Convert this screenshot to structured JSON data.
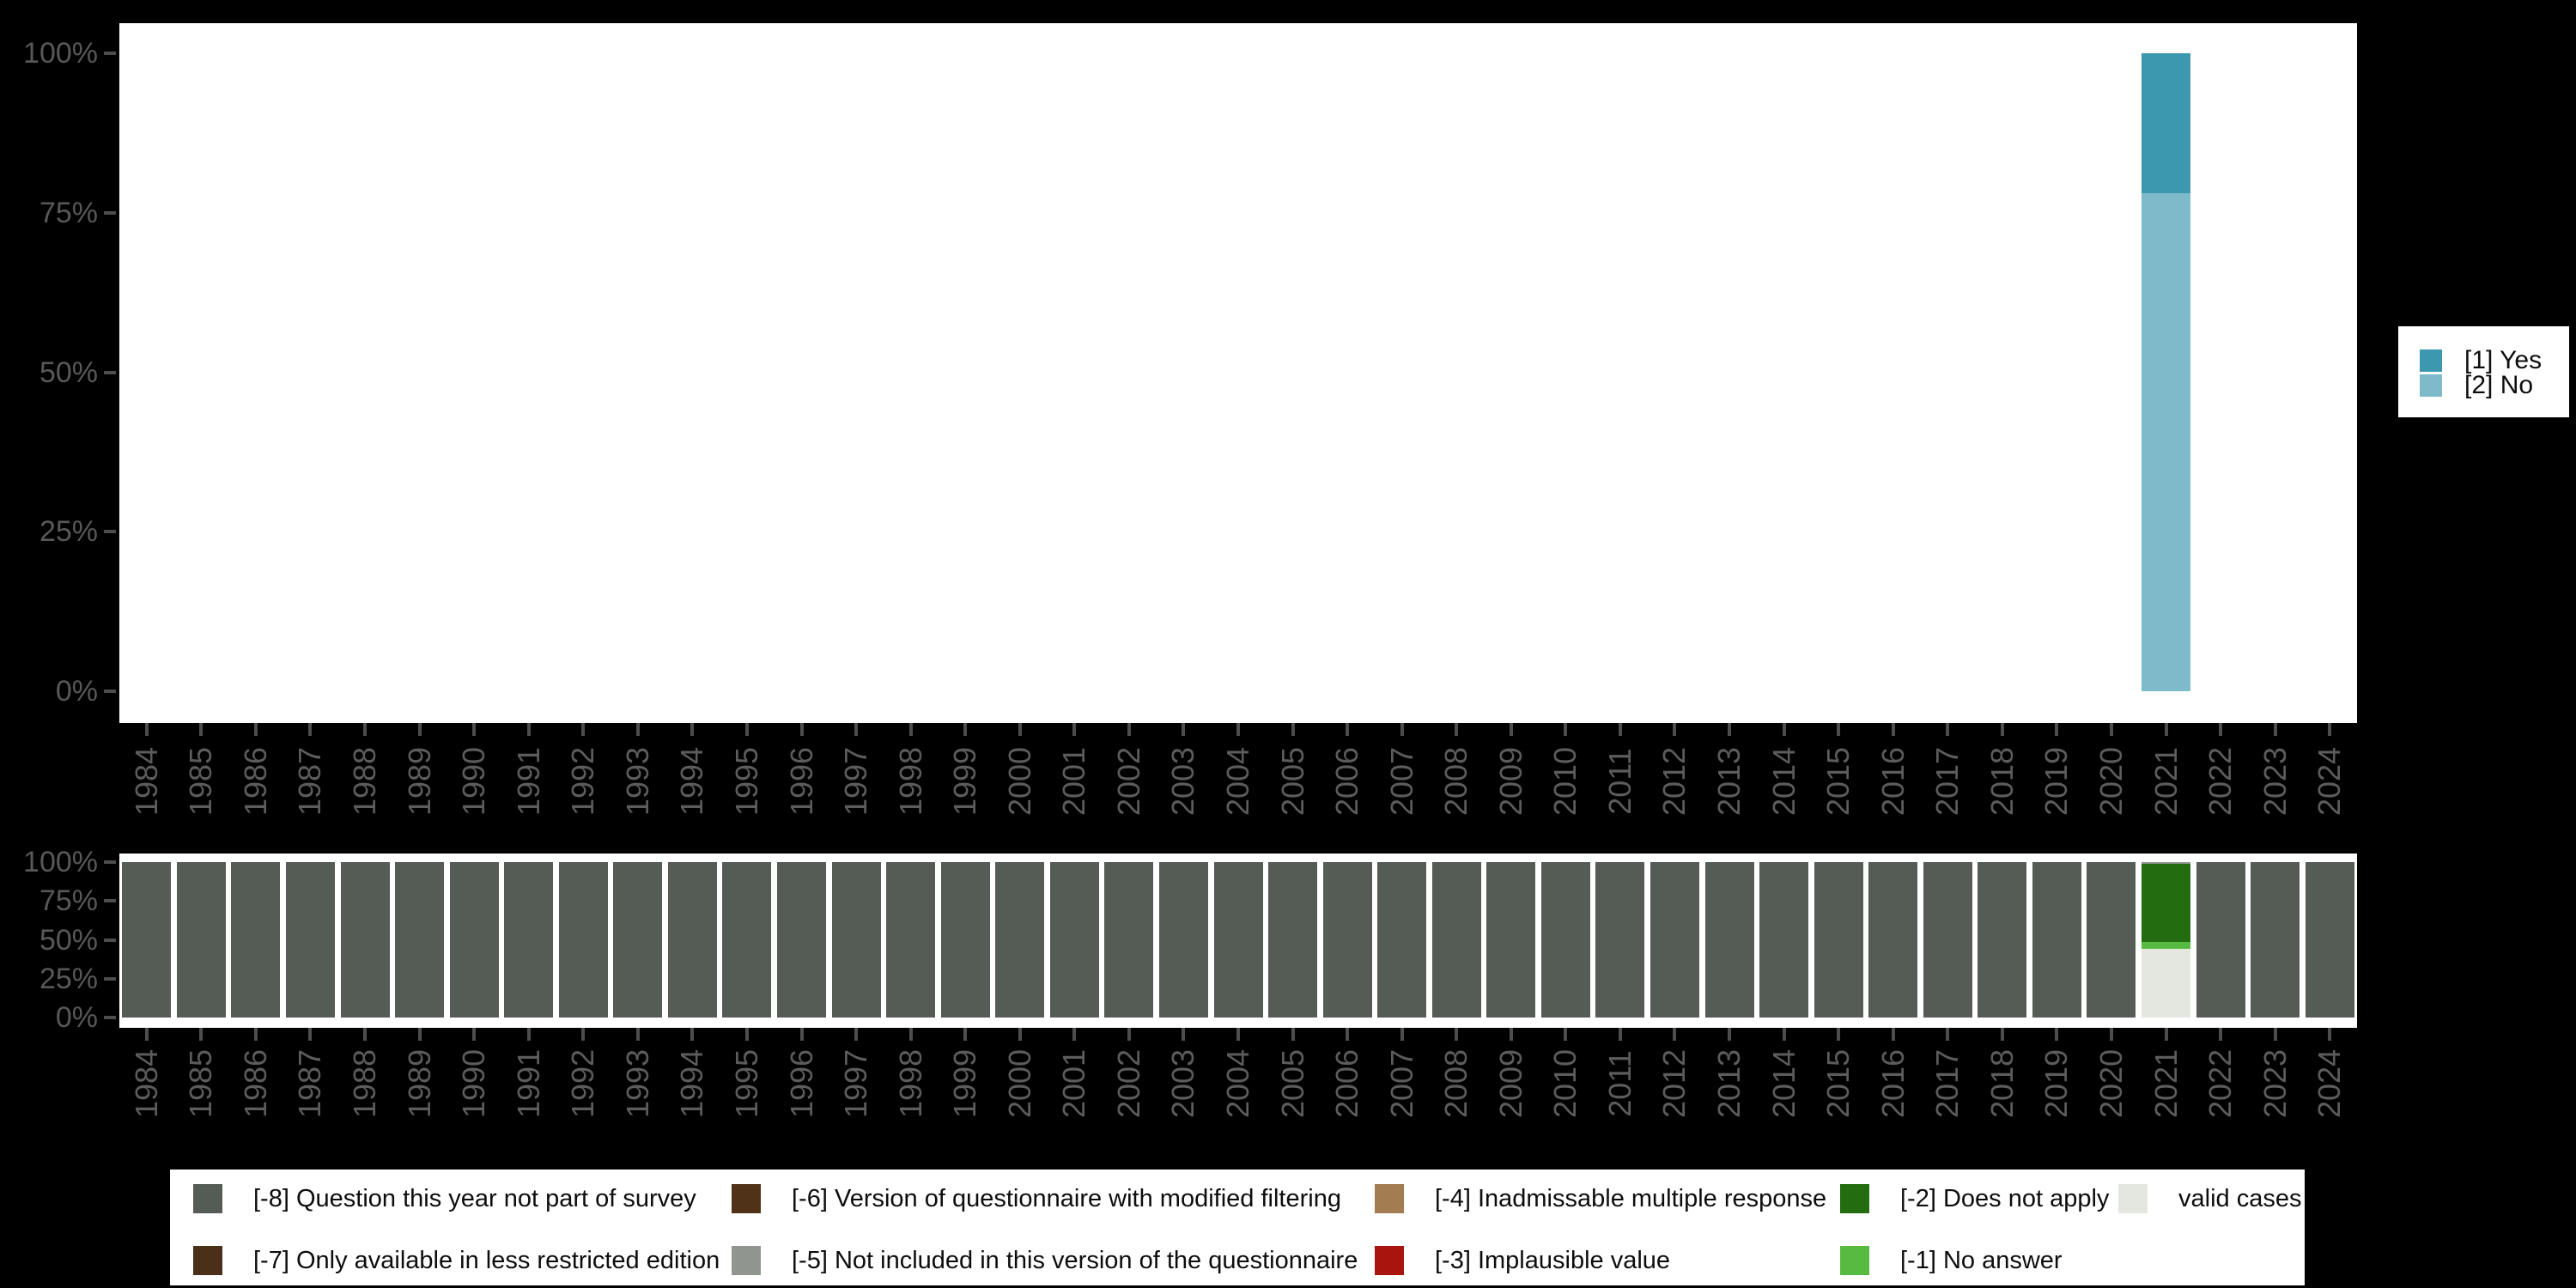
{
  "background_color": "#000000",
  "axis": {
    "tick_color": "#4d4d4d",
    "ylabel_color": "#585858",
    "xlabel_color": "#5c5c5c",
    "yticks": [
      {
        "label": "100%",
        "value": 100
      },
      {
        "label": "75%",
        "value": 75
      },
      {
        "label": "50%",
        "value": 50
      },
      {
        "label": "25%",
        "value": 25
      },
      {
        "label": "0%",
        "value": 0
      }
    ]
  },
  "years": [
    1984,
    1985,
    1986,
    1987,
    1988,
    1989,
    1990,
    1991,
    1992,
    1993,
    1994,
    1995,
    1996,
    1997,
    1998,
    1999,
    2000,
    2001,
    2002,
    2003,
    2004,
    2005,
    2006,
    2007,
    2008,
    2009,
    2010,
    2011,
    2012,
    2013,
    2014,
    2015,
    2016,
    2017,
    2018,
    2019,
    2020,
    2021,
    2022,
    2023,
    2024
  ],
  "category_colors": {
    "[1] Yes": "#3b98ae",
    "[2] No": "#7ebbca",
    "[-8] Question this year not part of survey": "#555b55",
    "[-7] Only available in less restricted edition": "#4a3019",
    "[-6] Version of questionnaire with modified filtering": "#503218",
    "[-5] Not included in this version of the questionnaire": "#90968f",
    "[-4] Inadmissable multiple response": "#a37c51",
    "[-3] Implausible value": "#a9140e",
    "[-2] Does not apply": "#236c10",
    "[-1] No answer": "#58bb41",
    "valid cases": "#e3e7e0"
  },
  "chart_data": [
    {
      "id": "value-distribution",
      "type": "bar",
      "stacked": true,
      "unit": "percent",
      "ylim": [
        0,
        100
      ],
      "yticks": [
        "100%",
        "75%",
        "50%",
        "25%",
        "0%"
      ],
      "categories_ref": "years",
      "grid": false,
      "bar_default": [],
      "bars": {
        "2021": [
          {
            "label": "[1] Yes",
            "value": 22
          },
          {
            "label": "[2] No",
            "value": 78
          }
        ]
      },
      "legend_position": "right",
      "legend": [
        {
          "label": "[1] Yes",
          "color": "#3b98ae"
        },
        {
          "label": "[2] No",
          "color": "#7ebbca"
        }
      ]
    },
    {
      "id": "missing-values",
      "type": "bar",
      "stacked": true,
      "unit": "percent",
      "ylim": [
        0,
        100
      ],
      "yticks": [
        "100%",
        "75%",
        "50%",
        "25%",
        "0%"
      ],
      "categories_ref": "years",
      "grid": false,
      "bar_default": [
        {
          "label": "[-8] Question this year not part of survey",
          "value": 100
        }
      ],
      "bars": {
        "2021": [
          {
            "label": "[-5] Not included in this version of the questionnaire",
            "value": 1
          },
          {
            "label": "[-2] Does not apply",
            "value": 50.5
          },
          {
            "label": "[-1] No answer",
            "value": 4.5
          },
          {
            "label": "valid cases",
            "value": 44
          }
        ]
      },
      "legend_position": "bottom",
      "legend_columns": [
        [
          {
            "label": "[-8] Question this year not part of survey"
          },
          {
            "label": "[-7] Only available in less restricted edition"
          }
        ],
        [
          {
            "label": "[-6] Version of questionnaire with modified filtering"
          },
          {
            "label": "[-5] Not included in this version of the questionnaire"
          }
        ],
        [
          {
            "label": "[-4] Inadmissable multiple response"
          },
          {
            "label": "[-3] Implausible value"
          }
        ],
        [
          {
            "label": "[-2] Does not apply"
          },
          {
            "label": "[-1] No answer"
          }
        ],
        [
          {
            "label": "valid cases"
          }
        ]
      ]
    }
  ]
}
